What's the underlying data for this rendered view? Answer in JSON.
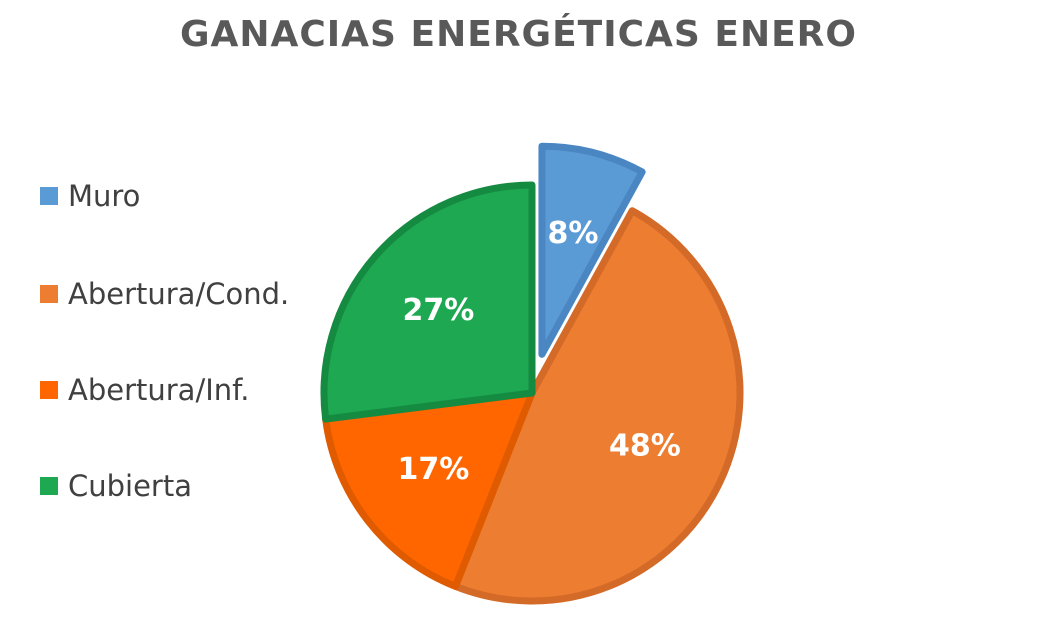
{
  "chart_data": {
    "type": "pie",
    "title": "GANACIAS ENERGÉTICAS ENERO",
    "legend_position": "left",
    "slices": [
      {
        "name": "Muro",
        "value": 8,
        "label": "8%",
        "color": "#5B9BD5",
        "edge_color": "#4A87C2",
        "exploded": true
      },
      {
        "name": "Abertura/Cond.",
        "value": 48,
        "label": "48%",
        "color": "#ED7D31",
        "edge_color": "#D46A27",
        "exploded": false
      },
      {
        "name": "Abertura/Inf.",
        "value": 17,
        "label": "17%",
        "color": "#FF6600",
        "edge_color": "#E05A00",
        "exploded": false
      },
      {
        "name": "Cubierta",
        "value": 27,
        "label": "27%",
        "color": "#1DA851",
        "edge_color": "#158A41",
        "exploded": false
      }
    ]
  }
}
